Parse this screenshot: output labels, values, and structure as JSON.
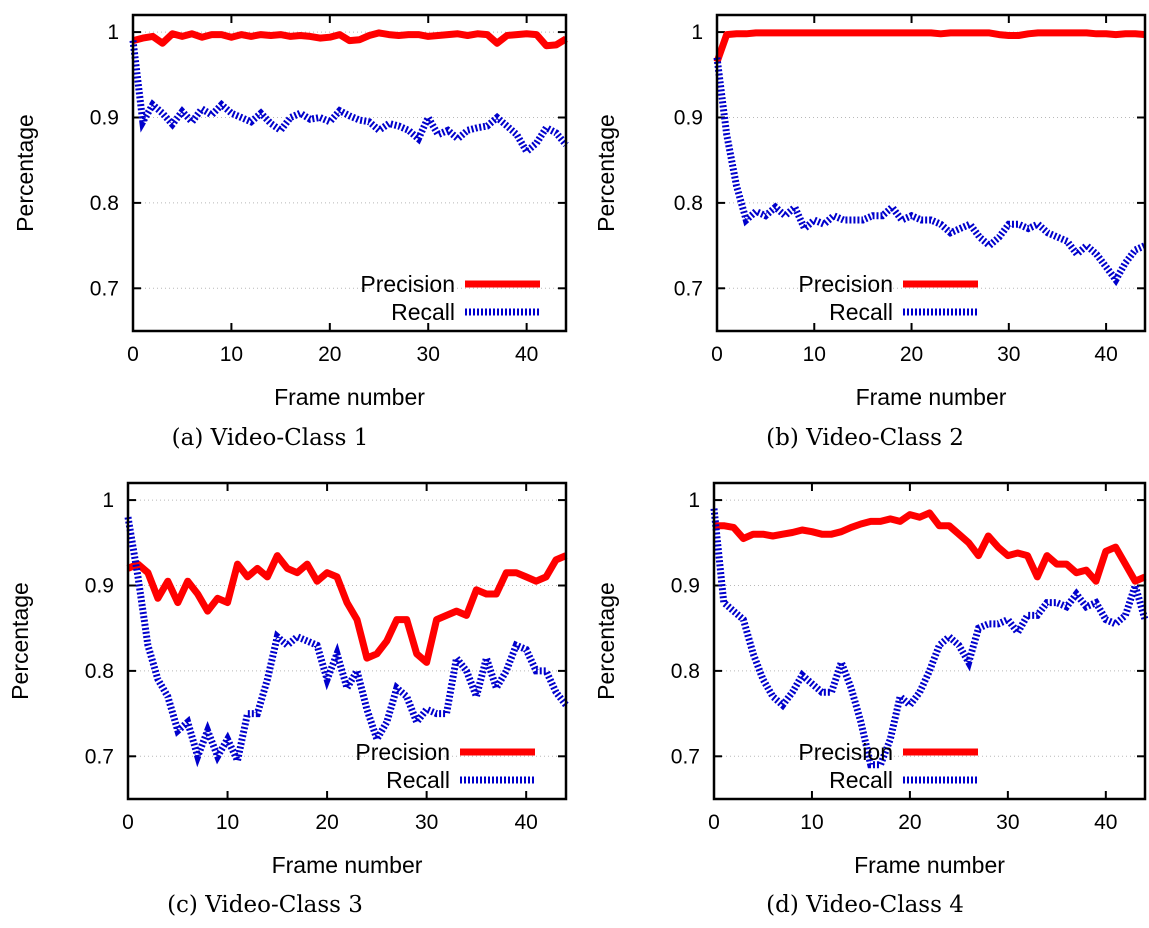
{
  "colors": {
    "precision": "#ff0000",
    "recall": "#0000cc",
    "frame": "#000000",
    "grid": "#b8b8b8"
  },
  "chart_data": [
    {
      "type": "line",
      "caption": "(a) Video-Class 1",
      "xlabel": "Frame number",
      "ylabel": "Percentage",
      "xlim": [
        0,
        44
      ],
      "ylim": [
        0.65,
        1.02
      ],
      "xticks": [
        0,
        10,
        20,
        30,
        40
      ],
      "yticks": [
        0.7,
        0.8,
        0.9,
        1
      ],
      "ytick_labels": [
        "0.7",
        "0.8",
        "0.9",
        "1"
      ],
      "grid": "horizontal dotted",
      "legend": "bottom-right",
      "series": [
        {
          "name": "Precision",
          "style": "solid",
          "x": [
            0,
            1,
            2,
            3,
            4,
            5,
            6,
            7,
            8,
            9,
            10,
            11,
            12,
            13,
            14,
            15,
            16,
            17,
            18,
            19,
            20,
            21,
            22,
            23,
            24,
            25,
            26,
            27,
            28,
            29,
            30,
            31,
            32,
            33,
            34,
            35,
            36,
            37,
            38,
            39,
            40,
            41,
            42,
            43,
            44
          ],
          "y": [
            0.99,
            0.993,
            0.995,
            0.987,
            0.998,
            0.995,
            0.998,
            0.994,
            0.997,
            0.997,
            0.994,
            0.997,
            0.995,
            0.997,
            0.996,
            0.997,
            0.995,
            0.996,
            0.995,
            0.993,
            0.994,
            0.997,
            0.99,
            0.991,
            0.996,
            0.999,
            0.997,
            0.996,
            0.997,
            0.997,
            0.995,
            0.996,
            0.997,
            0.998,
            0.996,
            0.998,
            0.997,
            0.987,
            0.996,
            0.997,
            0.998,
            0.997,
            0.984,
            0.985,
            0.992
          ]
        },
        {
          "name": "Recall",
          "style": "dotted",
          "x": [
            0,
            1,
            2,
            3,
            4,
            5,
            6,
            7,
            8,
            9,
            10,
            11,
            12,
            13,
            14,
            15,
            16,
            17,
            18,
            19,
            20,
            21,
            22,
            23,
            24,
            25,
            26,
            27,
            28,
            29,
            30,
            31,
            32,
            33,
            34,
            35,
            36,
            37,
            38,
            39,
            40,
            41,
            42,
            43,
            44
          ],
          "y": [
            0.99,
            0.895,
            0.915,
            0.905,
            0.892,
            0.907,
            0.895,
            0.91,
            0.903,
            0.915,
            0.905,
            0.9,
            0.895,
            0.905,
            0.893,
            0.885,
            0.9,
            0.905,
            0.898,
            0.9,
            0.895,
            0.908,
            0.902,
            0.897,
            0.895,
            0.885,
            0.893,
            0.89,
            0.885,
            0.875,
            0.9,
            0.88,
            0.885,
            0.875,
            0.885,
            0.888,
            0.89,
            0.9,
            0.89,
            0.88,
            0.86,
            0.87,
            0.888,
            0.882,
            0.868
          ]
        }
      ]
    },
    {
      "type": "line",
      "caption": "(b) Video-Class 2",
      "xlabel": "Frame number",
      "ylabel": "Percentage",
      "xlim": [
        0,
        44
      ],
      "ylim": [
        0.65,
        1.02
      ],
      "xticks": [
        0,
        10,
        20,
        30,
        40
      ],
      "yticks": [
        0.7,
        0.8,
        0.9,
        1
      ],
      "ytick_labels": [
        "0.7",
        "0.8",
        "0.9",
        "1"
      ],
      "grid": "horizontal dotted",
      "legend": "bottom-right",
      "series": [
        {
          "name": "Precision",
          "style": "solid",
          "x": [
            0,
            1,
            2,
            3,
            4,
            5,
            6,
            7,
            8,
            9,
            10,
            11,
            12,
            13,
            14,
            15,
            16,
            17,
            18,
            19,
            20,
            21,
            22,
            23,
            24,
            25,
            26,
            27,
            28,
            29,
            30,
            31,
            32,
            33,
            34,
            35,
            36,
            37,
            38,
            39,
            40,
            41,
            42,
            43,
            44
          ],
          "y": [
            0.965,
            0.997,
            0.998,
            0.998,
            0.999,
            0.999,
            0.999,
            0.999,
            0.999,
            0.999,
            0.999,
            0.999,
            0.999,
            0.999,
            0.999,
            0.999,
            0.999,
            0.999,
            0.999,
            0.999,
            0.999,
            0.999,
            0.999,
            0.998,
            0.999,
            0.999,
            0.999,
            0.999,
            0.999,
            0.997,
            0.996,
            0.996,
            0.998,
            0.999,
            0.999,
            0.999,
            0.999,
            0.999,
            0.999,
            0.998,
            0.998,
            0.997,
            0.998,
            0.998,
            0.997
          ]
        },
        {
          "name": "Recall",
          "style": "dotted",
          "x": [
            0,
            1,
            2,
            3,
            4,
            5,
            6,
            7,
            8,
            9,
            10,
            11,
            12,
            13,
            14,
            15,
            16,
            17,
            18,
            19,
            20,
            21,
            22,
            23,
            24,
            25,
            26,
            27,
            28,
            29,
            30,
            31,
            32,
            33,
            34,
            35,
            36,
            37,
            38,
            39,
            40,
            41,
            42,
            43,
            44
          ],
          "y": [
            0.97,
            0.88,
            0.82,
            0.78,
            0.79,
            0.785,
            0.795,
            0.785,
            0.795,
            0.77,
            0.78,
            0.775,
            0.785,
            0.78,
            0.78,
            0.78,
            0.785,
            0.785,
            0.795,
            0.78,
            0.785,
            0.78,
            0.78,
            0.775,
            0.765,
            0.77,
            0.775,
            0.76,
            0.75,
            0.76,
            0.775,
            0.775,
            0.77,
            0.775,
            0.765,
            0.76,
            0.755,
            0.74,
            0.75,
            0.74,
            0.725,
            0.71,
            0.73,
            0.745,
            0.75
          ]
        }
      ]
    },
    {
      "type": "line",
      "caption": "(c) Video-Class 3",
      "xlabel": "Frame number",
      "ylabel": "Percentage",
      "xlim": [
        0,
        44
      ],
      "ylim": [
        0.65,
        1.02
      ],
      "xticks": [
        0,
        10,
        20,
        30,
        40
      ],
      "yticks": [
        0.7,
        0.8,
        0.9,
        1
      ],
      "ytick_labels": [
        "0.7",
        "0.8",
        "0.9",
        "1"
      ],
      "grid": "horizontal dotted",
      "legend": "bottom-right",
      "series": [
        {
          "name": "Precision",
          "style": "solid",
          "x": [
            0,
            1,
            2,
            3,
            4,
            5,
            6,
            7,
            8,
            9,
            10,
            11,
            12,
            13,
            14,
            15,
            16,
            17,
            18,
            19,
            20,
            21,
            22,
            23,
            24,
            25,
            26,
            27,
            28,
            29,
            30,
            31,
            32,
            33,
            34,
            35,
            36,
            37,
            38,
            39,
            40,
            41,
            42,
            43,
            44
          ],
          "y": [
            0.92,
            0.925,
            0.915,
            0.885,
            0.905,
            0.88,
            0.905,
            0.89,
            0.87,
            0.885,
            0.88,
            0.925,
            0.91,
            0.92,
            0.91,
            0.935,
            0.92,
            0.915,
            0.925,
            0.905,
            0.915,
            0.91,
            0.88,
            0.86,
            0.815,
            0.82,
            0.835,
            0.86,
            0.86,
            0.82,
            0.81,
            0.86,
            0.865,
            0.87,
            0.865,
            0.895,
            0.89,
            0.89,
            0.915,
            0.915,
            0.91,
            0.905,
            0.91,
            0.93,
            0.935
          ]
        },
        {
          "name": "Recall",
          "style": "dotted",
          "x": [
            0,
            1,
            2,
            3,
            4,
            5,
            6,
            7,
            8,
            9,
            10,
            11,
            12,
            13,
            14,
            15,
            16,
            17,
            18,
            19,
            20,
            21,
            22,
            23,
            24,
            25,
            26,
            27,
            28,
            29,
            30,
            31,
            32,
            33,
            34,
            35,
            36,
            37,
            38,
            39,
            40,
            41,
            42,
            43,
            44
          ],
          "y": [
            0.98,
            0.91,
            0.83,
            0.79,
            0.77,
            0.73,
            0.74,
            0.7,
            0.73,
            0.7,
            0.72,
            0.695,
            0.75,
            0.75,
            0.79,
            0.84,
            0.83,
            0.84,
            0.835,
            0.83,
            0.79,
            0.82,
            0.78,
            0.8,
            0.755,
            0.72,
            0.74,
            0.78,
            0.77,
            0.74,
            0.755,
            0.75,
            0.75,
            0.815,
            0.8,
            0.77,
            0.815,
            0.78,
            0.8,
            0.83,
            0.825,
            0.8,
            0.8,
            0.775,
            0.76
          ]
        }
      ]
    },
    {
      "type": "line",
      "caption": "(d) Video-Class 4",
      "xlabel": "Frame number",
      "ylabel": "Percentage",
      "xlim": [
        0,
        44
      ],
      "ylim": [
        0.65,
        1.02
      ],
      "xticks": [
        0,
        10,
        20,
        30,
        40
      ],
      "yticks": [
        0.7,
        0.8,
        0.9,
        1
      ],
      "ytick_labels": [
        "0.7",
        "0.8",
        "0.9",
        "1"
      ],
      "grid": "horizontal dotted",
      "legend": "bottom-right",
      "series": [
        {
          "name": "Precision",
          "style": "solid",
          "x": [
            0,
            1,
            2,
            3,
            4,
            5,
            6,
            7,
            8,
            9,
            10,
            11,
            12,
            13,
            14,
            15,
            16,
            17,
            18,
            19,
            20,
            21,
            22,
            23,
            24,
            25,
            26,
            27,
            28,
            29,
            30,
            31,
            32,
            33,
            34,
            35,
            36,
            37,
            38,
            39,
            40,
            41,
            42,
            43,
            44
          ],
          "y": [
            0.97,
            0.97,
            0.968,
            0.955,
            0.96,
            0.96,
            0.958,
            0.96,
            0.962,
            0.965,
            0.963,
            0.96,
            0.96,
            0.963,
            0.968,
            0.972,
            0.975,
            0.975,
            0.978,
            0.975,
            0.983,
            0.98,
            0.985,
            0.97,
            0.97,
            0.96,
            0.95,
            0.935,
            0.958,
            0.945,
            0.935,
            0.938,
            0.935,
            0.91,
            0.935,
            0.925,
            0.925,
            0.915,
            0.918,
            0.905,
            0.94,
            0.945,
            0.925,
            0.905,
            0.91
          ]
        },
        {
          "name": "Recall",
          "style": "dotted",
          "x": [
            0,
            1,
            2,
            3,
            4,
            5,
            6,
            7,
            8,
            9,
            10,
            11,
            12,
            13,
            14,
            15,
            16,
            17,
            18,
            19,
            20,
            21,
            22,
            23,
            24,
            25,
            26,
            27,
            28,
            29,
            30,
            31,
            32,
            33,
            34,
            35,
            36,
            37,
            38,
            39,
            40,
            41,
            42,
            43,
            44
          ],
          "y": [
            0.99,
            0.88,
            0.87,
            0.86,
            0.82,
            0.79,
            0.77,
            0.76,
            0.775,
            0.795,
            0.785,
            0.775,
            0.775,
            0.81,
            0.78,
            0.74,
            0.69,
            0.69,
            0.72,
            0.77,
            0.76,
            0.775,
            0.8,
            0.83,
            0.84,
            0.83,
            0.81,
            0.85,
            0.855,
            0.855,
            0.86,
            0.845,
            0.865,
            0.865,
            0.88,
            0.88,
            0.875,
            0.89,
            0.875,
            0.88,
            0.86,
            0.855,
            0.865,
            0.9,
            0.86
          ]
        }
      ]
    }
  ]
}
